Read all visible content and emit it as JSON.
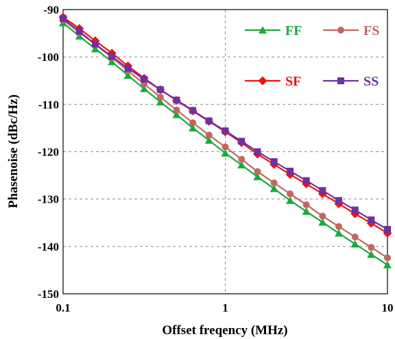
{
  "chart_data": {
    "type": "line",
    "title": "",
    "xlabel": "Offset freqency (MHz)",
    "ylabel": "Phasenoise (dBc/Hz)",
    "xscale": "log",
    "xlim": [
      0.1,
      10
    ],
    "ylim": [
      -150,
      -90
    ],
    "xticks": [
      0.1,
      1,
      10
    ],
    "xtick_labels": [
      "0.1",
      "1",
      "10"
    ],
    "yticks": [
      -150,
      -140,
      -130,
      -120,
      -110,
      -100,
      -90
    ],
    "ytick_labels": [
      "-150",
      "-140",
      "-130",
      "-120",
      "-110",
      "-100",
      "-90"
    ],
    "grid": true,
    "legend_position": "top-right",
    "x": [
      0.1,
      0.126,
      0.158,
      0.2,
      0.251,
      0.316,
      0.398,
      0.501,
      0.631,
      0.794,
      1,
      1.26,
      1.58,
      2,
      2.51,
      3.16,
      3.98,
      5.01,
      6.31,
      7.94,
      10
    ],
    "series": [
      {
        "name": "FF",
        "color": "#1aaa3c",
        "marker": "triangle",
        "values": [
          -92.8,
          -95.6,
          -98.3,
          -101.0,
          -103.9,
          -106.7,
          -109.5,
          -112.2,
          -115.0,
          -117.6,
          -120.3,
          -122.8,
          -125.3,
          -127.8,
          -130.3,
          -132.6,
          -134.9,
          -137.2,
          -139.5,
          -141.7,
          -143.9
        ]
      },
      {
        "name": "FS",
        "color": "#c1675f",
        "marker": "circle",
        "values": [
          -92.2,
          -94.8,
          -97.4,
          -100.1,
          -102.9,
          -105.7,
          -108.5,
          -111.2,
          -113.9,
          -116.5,
          -119.0,
          -121.6,
          -124.2,
          -126.6,
          -128.9,
          -131.2,
          -133.6,
          -135.8,
          -138.0,
          -140.2,
          -142.4
        ]
      },
      {
        "name": "SF",
        "color": "#ee1111",
        "marker": "diamond",
        "values": [
          -91.6,
          -94.0,
          -96.6,
          -99.2,
          -101.9,
          -104.5,
          -106.9,
          -109.2,
          -111.4,
          -113.6,
          -115.8,
          -118.1,
          -120.5,
          -122.7,
          -124.8,
          -126.8,
          -128.9,
          -131.0,
          -133.1,
          -135.1,
          -137.2
        ]
      },
      {
        "name": "SS",
        "color": "#7030a0",
        "marker": "square",
        "values": [
          -91.9,
          -94.6,
          -97.3,
          -99.9,
          -102.4,
          -104.7,
          -106.9,
          -109.1,
          -111.3,
          -113.5,
          -115.6,
          -117.8,
          -120.0,
          -122.1,
          -124.1,
          -126.1,
          -128.2,
          -130.3,
          -132.3,
          -134.4,
          -136.4
        ]
      }
    ]
  }
}
